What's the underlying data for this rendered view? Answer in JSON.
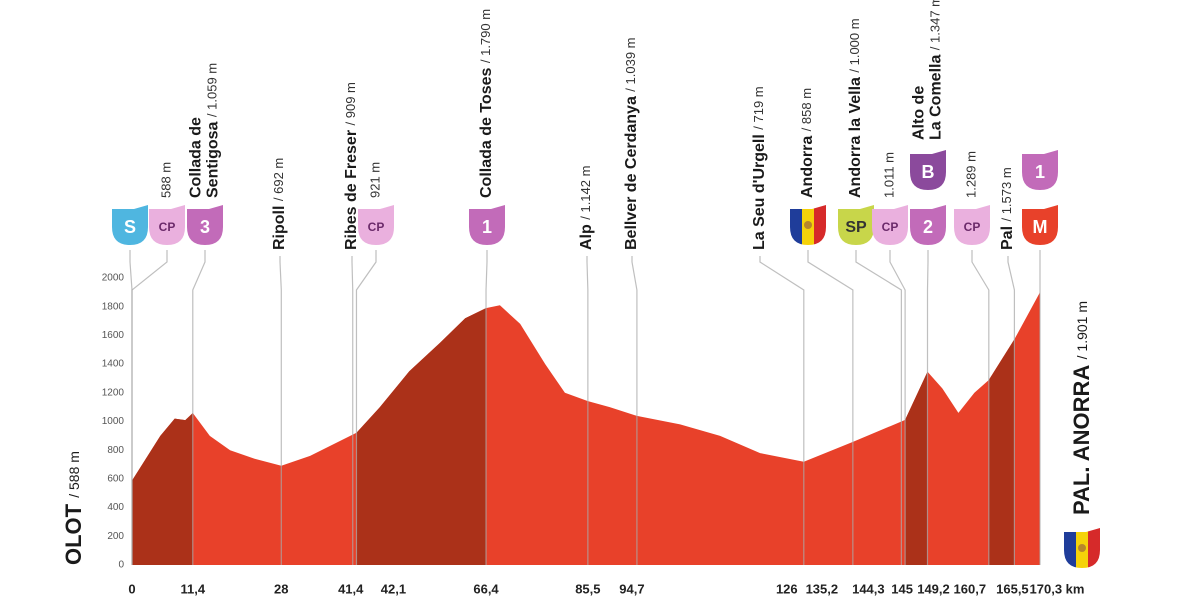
{
  "chart_data": {
    "type": "area",
    "x": [
      0,
      5.3,
      8,
      10,
      11.4,
      14.6,
      18.4,
      23,
      28,
      33.4,
      41.4,
      42.1,
      46.5,
      52,
      57.8,
      62.5,
      66.4,
      69,
      72.8,
      77.5,
      81.2,
      85.5,
      89.6,
      94.7,
      102.8,
      110.3,
      117.8,
      126,
      135.2,
      144.3,
      145,
      149.2,
      152,
      155,
      158,
      160.7,
      165.5,
      170.3
    ],
    "values": [
      588,
      900,
      1020,
      1010,
      1059,
      900,
      800,
      740,
      692,
      760,
      909,
      921,
      1100,
      1350,
      1550,
      1720,
      1790,
      1810,
      1680,
      1400,
      1200,
      1142,
      1100,
      1039,
      980,
      900,
      780,
      719,
      858,
      1000,
      1011,
      1347,
      1230,
      1060,
      1200,
      1289,
      1573,
      1901
    ],
    "color": "#e8412a",
    "dark_color": "#ab3119",
    "dark_segments": [
      [
        0,
        11.4
      ],
      [
        42.1,
        66.4
      ],
      [
        145,
        149.2
      ],
      [
        160.7,
        165.5
      ]
    ],
    "xlim": [
      0,
      170.3
    ],
    "ylim": [
      0,
      2000
    ],
    "yticks": [
      0,
      200,
      400,
      600,
      800,
      1000,
      1200,
      1400,
      1600,
      1800,
      2000
    ],
    "xticks": [
      0,
      {
        "value": 11.4,
        "label": "11,4"
      },
      28,
      {
        "value": 41.4,
        "label": "41,4"
      },
      {
        "value": 42.1,
        "label": "42,1"
      },
      {
        "value": 66.4,
        "label": "66,4"
      },
      {
        "value": 85.5,
        "label": "85,5"
      },
      {
        "value": 94.7,
        "label": "94,7"
      },
      126,
      {
        "value": 135.2,
        "label": "135,2"
      },
      {
        "value": 144.3,
        "label": "144,3"
      },
      145,
      {
        "value": 149.2,
        "label": "149,2"
      },
      {
        "value": 160.7,
        "label": "160,7"
      },
      {
        "value": 165.5,
        "label": "165,5"
      },
      {
        "value": 170.3,
        "label": "170,3 km"
      }
    ],
    "start": {
      "name": "OLOT",
      "alt": "/ 588 m"
    },
    "finish": {
      "name": "PAL. ANORRA",
      "alt": "/ 1.901 m",
      "flag": [
        "#1f3d9a",
        "#f5d20a",
        "#d62a2a"
      ]
    },
    "landmarks": [
      {
        "km": 0,
        "badges": [
          {
            "text": "S",
            "color": "#4fb6e0"
          }
        ]
      },
      {
        "km": 0,
        "alt": "588 m",
        "badges": [
          {
            "text": "CP",
            "color": "#eab0de",
            "text_color": "#6b2a6a"
          }
        ]
      },
      {
        "km": 11.4,
        "name": [
          "Collada de",
          "Sentigosa"
        ],
        "alt": "/ 1.059 m",
        "badges": [
          {
            "text": "3",
            "color": "#c26bb9"
          }
        ]
      },
      {
        "km": 28,
        "name": [
          "Ripoll"
        ],
        "alt": "/ 692 m"
      },
      {
        "km": 41.4,
        "name": [
          "Ribes de Freser"
        ],
        "alt": "/ 909 m"
      },
      {
        "km": 42.1,
        "alt": "921 m",
        "badges": [
          {
            "text": "CP",
            "color": "#eab0de",
            "text_color": "#6b2a6a"
          }
        ]
      },
      {
        "km": 66.4,
        "name": [
          "Collada de Toses"
        ],
        "alt": "/ 1.790 m",
        "badges": [
          {
            "text": "1",
            "color": "#c26bb9"
          }
        ]
      },
      {
        "km": 85.5,
        "name": [
          "Alp"
        ],
        "alt": "/ 1.142 m"
      },
      {
        "km": 94.7,
        "name": [
          "Bellver de Cerdanya"
        ],
        "alt": "/ 1.039 m"
      },
      {
        "km": 126,
        "name": [
          "La Seu d'Urgell"
        ],
        "alt": "/ 719 m"
      },
      {
        "km": 135.2,
        "name": [
          "Andorra"
        ],
        "alt": "/ 858 m",
        "badges": [
          {
            "flag": [
              "#1f3d9a",
              "#f5d20a",
              "#d62a2a"
            ]
          }
        ]
      },
      {
        "km": 144.3,
        "name": [
          "Andorra la Vella"
        ],
        "alt": "/ 1.000 m",
        "badges": [
          {
            "text": "SP",
            "color": "#c8d64a",
            "text_color": "#333"
          }
        ]
      },
      {
        "km": 145,
        "alt": "1.011 m",
        "badges": [
          {
            "text": "CP",
            "color": "#eab0de",
            "text_color": "#6b2a6a"
          }
        ]
      },
      {
        "km": 149.2,
        "name": [
          "Alto de",
          "La Comella"
        ],
        "alt": "/ 1.347 m",
        "badges": [
          {
            "text": "2",
            "color": "#c26bb9"
          },
          {
            "text": "B",
            "color": "#8b4a9c"
          }
        ]
      },
      {
        "km": 160.7,
        "alt": "1.289 m",
        "badges": [
          {
            "text": "CP",
            "color": "#eab0de",
            "text_color": "#6b2a6a"
          }
        ]
      },
      {
        "km": 165.5,
        "name": [
          "Pal"
        ],
        "alt": "/ 1.573 m"
      },
      {
        "km": 170.3,
        "badges": [
          {
            "text": "M",
            "color": "#e8412a"
          },
          {
            "text": "1",
            "color": "#c26bb9"
          }
        ]
      }
    ]
  }
}
